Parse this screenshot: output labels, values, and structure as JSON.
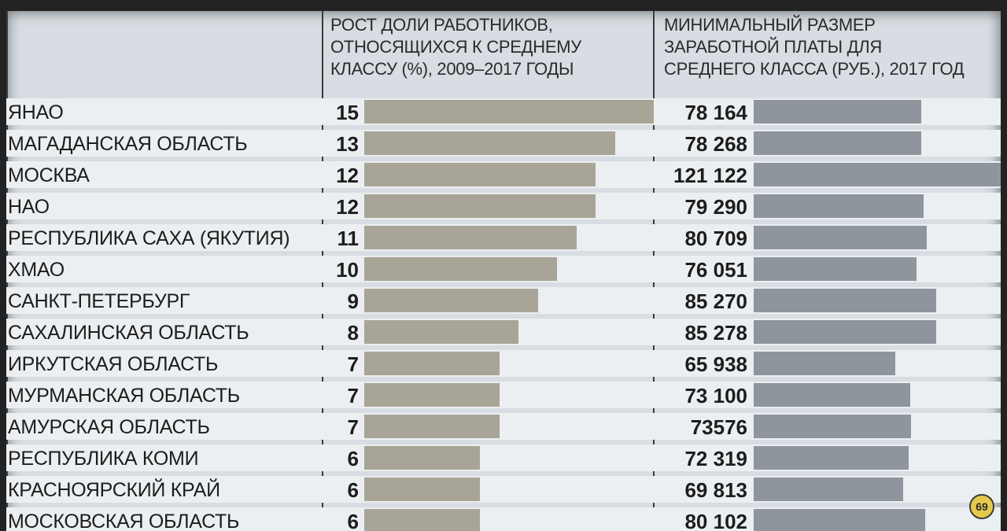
{
  "header": {
    "col1": [
      "РОСТ ДОЛИ РАБОТНИКОВ,",
      "ОТНОСЯЩИХСЯ К СРЕДНЕМУ",
      "КЛАССУ (%), 2009–2017 ГОДЫ"
    ],
    "col2": [
      "МИНИМАЛЬНЫЙ РАЗМЕР",
      "ЗАРАБОТНОЙ ПЛАТЫ ДЛЯ",
      "СРЕДНЕГО КЛАССА (РУБ.), 2017 ГОД"
    ]
  },
  "colors": {
    "bar1": "#a8a497",
    "bar2": "#8e959c",
    "stripe": "#eceff1",
    "background": "#d7dde2"
  },
  "chart_data": {
    "type": "table",
    "columns": [
      "",
      "РОСТ ДОЛИ РАБОТНИКОВ, ОТНОСЯЩИХСЯ К СРЕДНЕМУ КЛАССУ (%), 2009–2017 ГОДЫ",
      "МИНИМАЛЬНЫЙ РАЗМЕР ЗАРАБОТНОЙ ПЛАТЫ ДЛЯ СРЕДНЕГО КЛАССА (РУБ.), 2017 ГОД"
    ],
    "rows": [
      {
        "name": "ЯНАО",
        "growth": 15,
        "growth_label": "15",
        "salary": 78164,
        "salary_label": "78 164"
      },
      {
        "name": "МАГАДАНСКАЯ ОБЛАСТЬ",
        "growth": 13,
        "growth_label": "13",
        "salary": 78268,
        "salary_label": "78 268"
      },
      {
        "name": "МОСКВА",
        "growth": 12,
        "growth_label": "12",
        "salary": 121122,
        "salary_label": "121 122"
      },
      {
        "name": "НАО",
        "growth": 12,
        "growth_label": "12",
        "salary": 79290,
        "salary_label": "79 290"
      },
      {
        "name": "РЕСПУБЛИКА САХА (ЯКУТИЯ)",
        "growth": 11,
        "growth_label": "11",
        "salary": 80709,
        "salary_label": "80 709"
      },
      {
        "name": "ХМАО",
        "growth": 10,
        "growth_label": "10",
        "salary": 76051,
        "salary_label": "76 051"
      },
      {
        "name": "САНКТ-ПЕТЕРБУРГ",
        "growth": 9,
        "growth_label": "9",
        "salary": 85270,
        "salary_label": "85 270"
      },
      {
        "name": "САХАЛИНСКАЯ ОБЛАСТЬ",
        "growth": 8,
        "growth_label": "8",
        "salary": 85278,
        "salary_label": "85 278"
      },
      {
        "name": "ИРКУТСКАЯ ОБЛАСТЬ",
        "growth": 7,
        "growth_label": "7",
        "salary": 65938,
        "salary_label": "65 938"
      },
      {
        "name": "МУРМАНСКАЯ ОБЛАСТЬ",
        "growth": 7,
        "growth_label": "7",
        "salary": 73100,
        "salary_label": "73 100"
      },
      {
        "name": "АМУРСКАЯ ОБЛАСТЬ",
        "growth": 7,
        "growth_label": "7",
        "salary": 73576,
        "salary_label": "73576"
      },
      {
        "name": "РЕСПУБЛИКА КОМИ",
        "growth": 6,
        "growth_label": "6",
        "salary": 72319,
        "salary_label": "72 319"
      },
      {
        "name": "КРАСНОЯРСКИЙ КРАЙ",
        "growth": 6,
        "growth_label": "6",
        "salary": 69813,
        "salary_label": "69 813"
      },
      {
        "name": "МОСКОВСКАЯ ОБЛАСТЬ",
        "growth": 6,
        "growth_label": "6",
        "salary": 80102,
        "salary_label": "80 102"
      }
    ]
  }
}
